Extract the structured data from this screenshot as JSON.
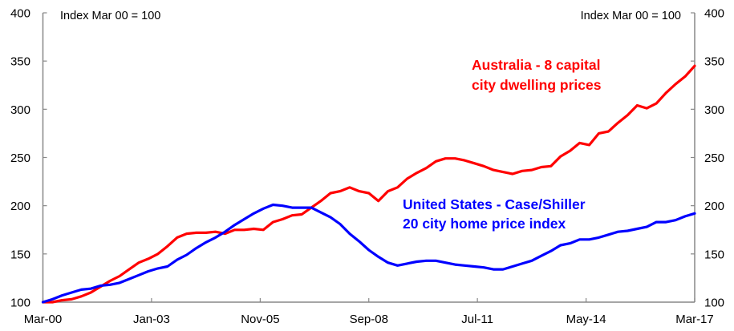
{
  "chart_data": {
    "type": "line",
    "title": "",
    "xlabel": "",
    "ylabel": "Index Mar 00 = 100",
    "left_axis_note": "Index Mar 00 = 100",
    "right_axis_note": "Index Mar 00 = 100",
    "ylim": [
      100,
      400
    ],
    "yticks": [
      "100",
      "150",
      "200",
      "250",
      "300",
      "350",
      "400"
    ],
    "ytick_values": [
      100,
      150,
      200,
      250,
      300,
      350,
      400
    ],
    "xtick_labels": [
      "Mar-00",
      "Jan-03",
      "Nov-05",
      "Sep-08",
      "Jul-11",
      "May-14",
      "Mar-17"
    ],
    "xtick_quarter_index": [
      0,
      11.33,
      22.67,
      34,
      45.33,
      56.67,
      68
    ],
    "x_frequency": "quarterly from Mar-00 to Mar-17",
    "grid": false,
    "series": [
      {
        "name": "Australia - 8 capital city dwelling prices",
        "label_lines": [
          "Australia - 8 capital",
          "city dwelling prices"
        ],
        "color": "#ff0000",
        "values": [
          100,
          100,
          102,
          103,
          106,
          110,
          116,
          122,
          127,
          134,
          141,
          145,
          150,
          158,
          167,
          171,
          172,
          172,
          173,
          171,
          175,
          175,
          176,
          175,
          183,
          186,
          190,
          191,
          198,
          205,
          213,
          215,
          219,
          215,
          213,
          205,
          215,
          219,
          228,
          234,
          239,
          246,
          249,
          249,
          247,
          244,
          241,
          237,
          235,
          233,
          236,
          237,
          240,
          241,
          251,
          257,
          265,
          263,
          275,
          277,
          286,
          294,
          304,
          301,
          306,
          317,
          326,
          334,
          345
        ]
      },
      {
        "name": "United States - Case/Shiller 20 city home price index",
        "label_lines": [
          "United States - Case/Shiller",
          "20 city home price index"
        ],
        "color": "#0000ff",
        "values": [
          100,
          103,
          107,
          110,
          113,
          114,
          117,
          118,
          120,
          124,
          128,
          132,
          135,
          137,
          144,
          149,
          156,
          162,
          167,
          173,
          180,
          186,
          192,
          197,
          201,
          200,
          198,
          198,
          198,
          193,
          188,
          181,
          171,
          163,
          154,
          147,
          141,
          138,
          140,
          142,
          143,
          143,
          141,
          139,
          138,
          137,
          136,
          134,
          134,
          137,
          140,
          143,
          148,
          153,
          159,
          161,
          165,
          165,
          167,
          170,
          173,
          174,
          176,
          178,
          183,
          183,
          185,
          189,
          192
        ]
      }
    ]
  }
}
